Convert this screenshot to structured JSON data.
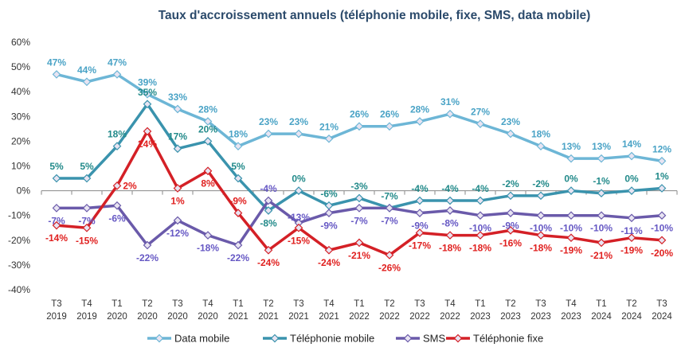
{
  "chart_data": {
    "type": "line",
    "title": "Taux d'accroissement annuels (téléphonie mobile, fixe, SMS, data mobile)",
    "categories": [
      [
        "T3",
        "2019"
      ],
      [
        "T4",
        "2019"
      ],
      [
        "T1",
        "2020"
      ],
      [
        "T2",
        "2020"
      ],
      [
        "T3",
        "2020"
      ],
      [
        "T4",
        "2020"
      ],
      [
        "T1",
        "2021"
      ],
      [
        "T2",
        "2021"
      ],
      [
        "T3",
        "2021"
      ],
      [
        "T4",
        "2021"
      ],
      [
        "T1",
        "2022"
      ],
      [
        "T2",
        "2022"
      ],
      [
        "T3",
        "2022"
      ],
      [
        "T4",
        "2022"
      ],
      [
        "T1",
        "2023"
      ],
      [
        "T2",
        "2023"
      ],
      [
        "T3",
        "2023"
      ],
      [
        "T4",
        "2023"
      ],
      [
        "T1",
        "2024"
      ],
      [
        "T2",
        "2024"
      ],
      [
        "T3",
        "2024"
      ]
    ],
    "ylim": [
      -40,
      60
    ],
    "yticks": [
      -40,
      -30,
      -20,
      -10,
      0,
      10,
      20,
      30,
      40,
      50,
      60
    ],
    "y_unit": "%",
    "grid": false,
    "legend_position": "bottom",
    "series": [
      {
        "name": "Data mobile",
        "color": "#6db6d6",
        "label_color": "#4aa3c6",
        "values": [
          47,
          44,
          47,
          39,
          33,
          28,
          18,
          23,
          23,
          21,
          26,
          26,
          28,
          31,
          27,
          23,
          18,
          13,
          13,
          14,
          12
        ]
      },
      {
        "name": "Téléphonie mobile",
        "color": "#3a93ad",
        "label_color": "#228a8a",
        "values": [
          5,
          5,
          18,
          35,
          17,
          20,
          5,
          -8,
          0,
          -6,
          -3,
          -7,
          -4,
          -4,
          -4,
          -2,
          -2,
          0,
          -1,
          0,
          1
        ]
      },
      {
        "name": "SMS",
        "color": "#6a5aaa",
        "label_color": "#6658c4",
        "values": [
          -7,
          -7,
          -6,
          -22,
          -12,
          -18,
          -22,
          -4,
          -13,
          -9,
          -7,
          -7,
          -9,
          -8,
          -10,
          -9,
          -10,
          -10,
          -10,
          -11,
          -10
        ]
      },
      {
        "name": "Téléphonie fixe",
        "color": "#d42026",
        "label_color": "#e0201f",
        "values": [
          -14,
          -15,
          2,
          24,
          1,
          8,
          -9,
          -24,
          -15,
          -24,
          -21,
          -26,
          -17,
          -18,
          -18,
          -16,
          -18,
          -19,
          -21,
          -19,
          -20
        ]
      }
    ]
  }
}
